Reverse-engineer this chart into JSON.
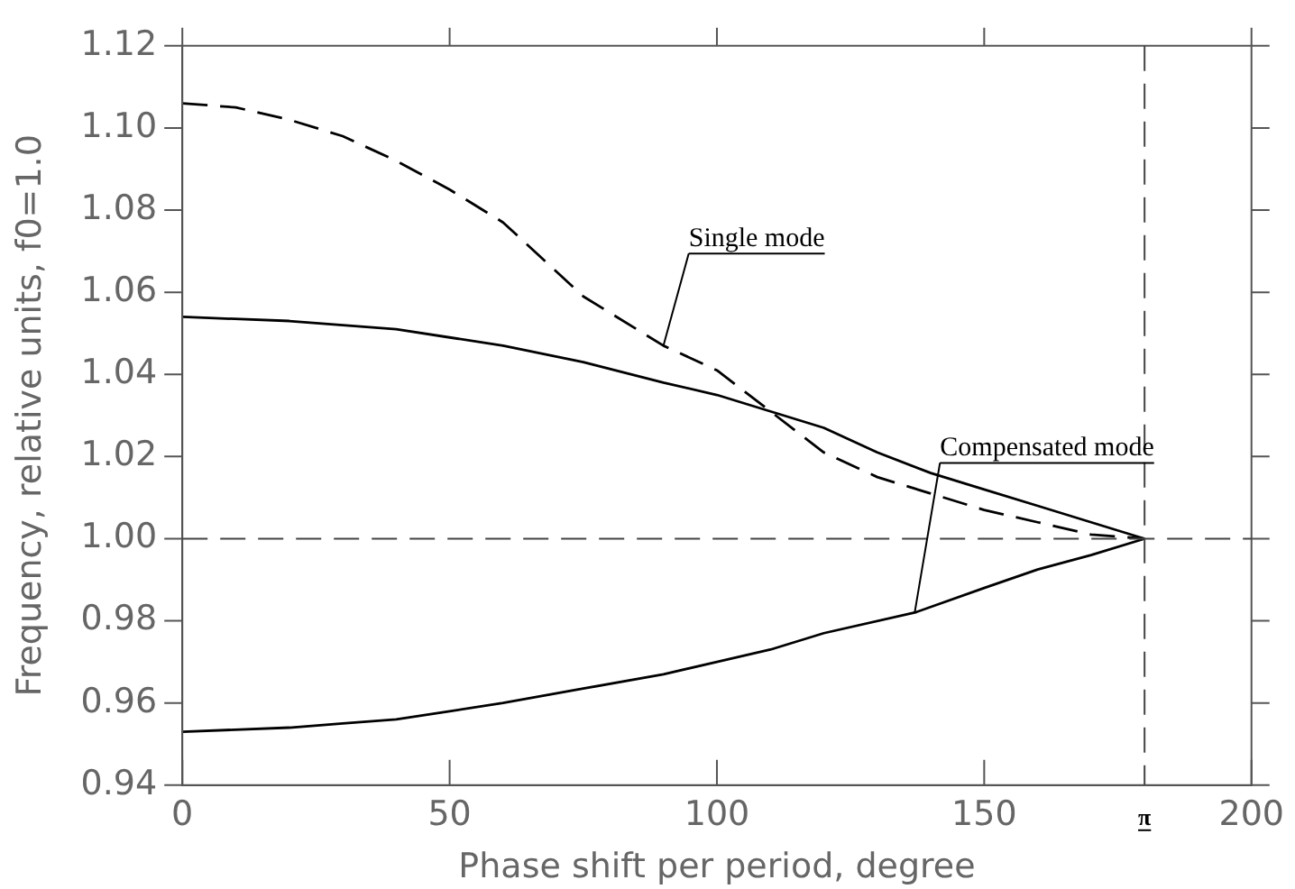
{
  "chart_data": {
    "type": "line",
    "xlabel": "Phase shift per period, degree",
    "ylabel": "Frequency, relative units, f0=1.0",
    "xlim": [
      0,
      200
    ],
    "xticks": [
      0,
      50,
      100,
      150,
      200
    ],
    "ylim": [
      0.94,
      1.12
    ],
    "yticks": [
      0.94,
      0.96,
      0.98,
      {
        "value": 1.0,
        "label": "1.00"
      },
      1.02,
      1.04,
      1.06,
      1.08,
      {
        "value": 1.1,
        "label": "1.10"
      },
      1.12
    ],
    "grid": false,
    "legend": false,
    "marker": "none",
    "series": [
      {
        "color": "#000000",
        "line_style": "dashed",
        "x": [
          0,
          10,
          20,
          30,
          40,
          50,
          60,
          75,
          90,
          100,
          110,
          120,
          130,
          140,
          150,
          160,
          170,
          180
        ],
        "values": [
          1.106,
          1.105,
          1.102,
          1.098,
          1.092,
          1.085,
          1.077,
          1.059,
          1.047,
          1.041,
          1.031,
          1.021,
          1.015,
          1.011,
          1.007,
          1.004,
          1.001,
          1.0
        ]
      },
      {
        "color": "#000000",
        "line_style": "solid",
        "x": [
          0,
          20,
          40,
          50,
          60,
          75,
          90,
          100,
          110,
          120,
          130,
          140,
          150,
          160,
          170,
          180
        ],
        "values": [
          1.054,
          1.053,
          1.051,
          1.049,
          1.047,
          1.043,
          1.038,
          1.035,
          1.031,
          1.027,
          1.021,
          1.016,
          1.012,
          1.008,
          1.004,
          1.0
        ]
      },
      {
        "color": "#000000",
        "line_style": "solid",
        "x": [
          0,
          20,
          30,
          40,
          50,
          60,
          75,
          90,
          100,
          110,
          120,
          137,
          150,
          160,
          170,
          180
        ],
        "values": [
          0.953,
          0.954,
          0.955,
          0.956,
          0.958,
          0.96,
          0.9635,
          0.967,
          0.97,
          0.973,
          0.977,
          0.982,
          0.988,
          0.9925,
          0.996,
          1.0
        ]
      }
    ],
    "ref_lines": [
      {
        "axis": "y",
        "value": 1.0,
        "line_style": "dashed",
        "color": "#444444"
      },
      {
        "axis": "x",
        "value": 180,
        "line_style": "dashed",
        "color": "#444444"
      }
    ],
    "annotations": [
      {
        "text": "Single mode",
        "x": 90,
        "y": 1.047
      },
      {
        "text": "Compensated mode",
        "x": 137,
        "y": 0.982
      },
      {
        "text": "π",
        "x": 180,
        "y": 0.94
      }
    ]
  }
}
